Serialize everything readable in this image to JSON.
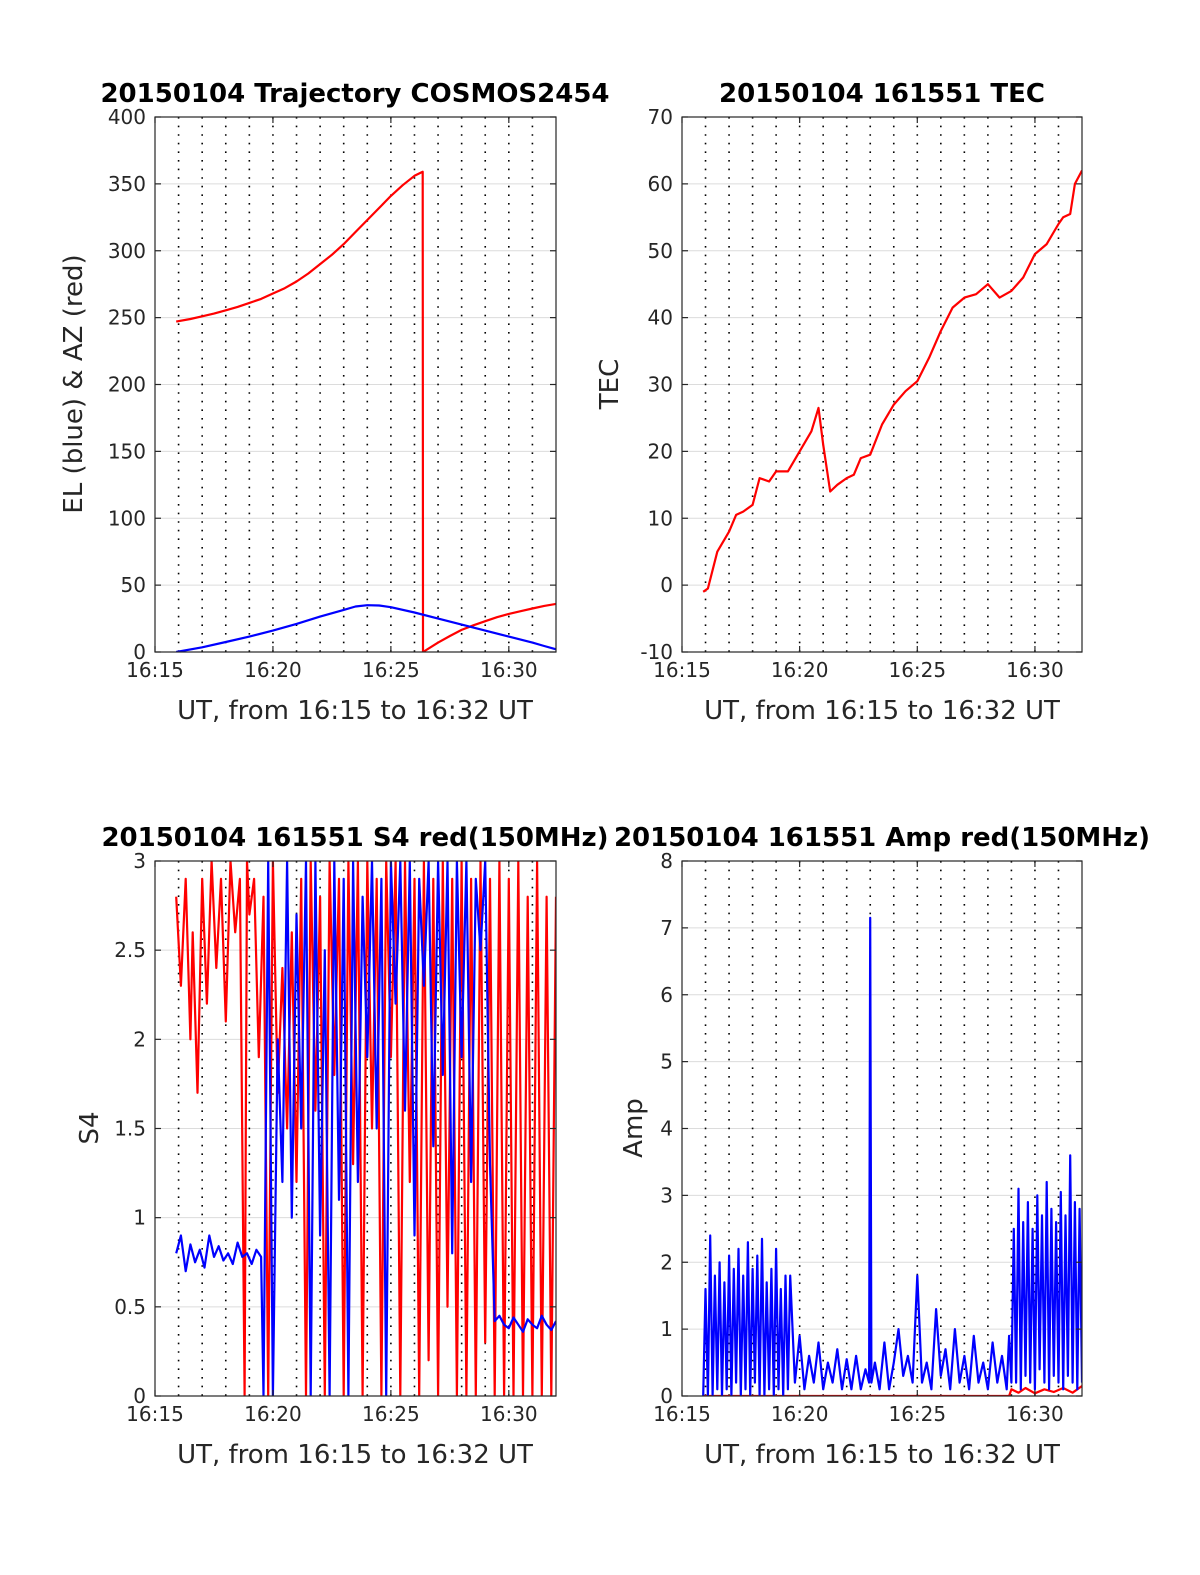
{
  "colors": {
    "red": "#ff0000",
    "blue": "#0000ff"
  },
  "chart_data": [
    {
      "type": "line",
      "title": "20150104 Trajectory COSMOS2454",
      "xlabel": "UT, from 16:15 to 16:32 UT",
      "ylabel": "EL (blue) & AZ (red)",
      "xlim": [
        15,
        32
      ],
      "ylim": [
        0,
        400
      ],
      "xticks": [
        15,
        20,
        25,
        30
      ],
      "xticklabels": [
        "16:15",
        "16:20",
        "16:25",
        "16:30"
      ],
      "yticks": [
        0,
        50,
        100,
        150,
        200,
        250,
        300,
        350,
        400
      ],
      "yticklabels": [
        "0",
        "50",
        "100",
        "150",
        "200",
        "250",
        "300",
        "350",
        "400"
      ],
      "minute_gridlines": true,
      "series": [
        {
          "color": "red",
          "x": [
            15.9,
            16.5,
            17,
            17.5,
            18,
            18.5,
            19,
            19.5,
            20,
            20.5,
            21,
            21.5,
            22,
            22.5,
            23,
            23.5,
            24,
            24.5,
            25,
            25.5,
            26,
            26.35,
            26.36,
            27,
            27.5,
            28,
            28.5,
            29,
            29.5,
            30,
            30.5,
            31,
            31.5,
            32
          ],
          "y": [
            247,
            249,
            251,
            253,
            255.5,
            258,
            261,
            264,
            268,
            272,
            277,
            283,
            290,
            297,
            305,
            314,
            323,
            332,
            341,
            349,
            356,
            359,
            0,
            7,
            12,
            16.5,
            20,
            23,
            26,
            28.5,
            30.5,
            32.5,
            34.5,
            36
          ]
        },
        {
          "color": "blue",
          "x": [
            15.9,
            17,
            18,
            19,
            20,
            21,
            22,
            23,
            23.5,
            24,
            24.5,
            25,
            26,
            27,
            28,
            29,
            30,
            31,
            31.5,
            32
          ],
          "y": [
            0,
            3.5,
            7.5,
            11.5,
            16,
            21,
            26.5,
            31.5,
            34,
            35,
            34.8,
            33.5,
            29.5,
            25,
            20.5,
            16,
            11.5,
            7,
            4.5,
            2
          ]
        }
      ]
    },
    {
      "type": "line",
      "title": "20150104 161551 TEC",
      "xlabel": "UT, from 16:15 to 16:32 UT",
      "ylabel": "TEC",
      "xlim": [
        15,
        32
      ],
      "ylim": [
        -10,
        70
      ],
      "xticks": [
        15,
        20,
        25,
        30
      ],
      "xticklabels": [
        "16:15",
        "16:20",
        "16:25",
        "16:30"
      ],
      "yticks": [
        -10,
        0,
        10,
        20,
        30,
        40,
        50,
        60,
        70
      ],
      "yticklabels": [
        "-10",
        "0",
        "10",
        "20",
        "30",
        "40",
        "50",
        "60",
        "70"
      ],
      "minute_gridlines": true,
      "series": [
        {
          "color": "red",
          "x": [
            15.9,
            16.1,
            16.5,
            17,
            17.3,
            17.6,
            18,
            18.3,
            18.7,
            19,
            19.5,
            20,
            20.5,
            20.8,
            21,
            21.3,
            21.6,
            22,
            22.3,
            22.6,
            23,
            23.5,
            24,
            24.5,
            25,
            25.5,
            26,
            26.5,
            27,
            27.5,
            28,
            28.5,
            29,
            29.5,
            30,
            30.5,
            31,
            31.2,
            31.5,
            31.7,
            32
          ],
          "y": [
            -1,
            -0.5,
            5,
            8,
            10.5,
            11,
            12,
            16,
            15.5,
            17,
            17,
            20,
            23,
            26.5,
            21,
            14,
            15,
            16,
            16.5,
            19,
            19.5,
            24,
            27,
            29,
            30.5,
            34,
            38,
            41.5,
            43,
            43.5,
            45,
            43,
            44,
            46,
            49.5,
            51,
            54,
            55,
            55.5,
            60,
            62
          ]
        }
      ]
    },
    {
      "type": "line",
      "title": "20150104 161551 S4 red(150MHz)",
      "xlabel": "UT, from 16:15 to 16:32 UT",
      "ylabel": "S4",
      "xlim": [
        15,
        32
      ],
      "ylim": [
        0,
        3
      ],
      "xticks": [
        15,
        20,
        25,
        30
      ],
      "xticklabels": [
        "16:15",
        "16:20",
        "16:25",
        "16:30"
      ],
      "yticks": [
        0,
        0.5,
        1,
        1.5,
        2,
        2.5,
        3
      ],
      "yticklabels": [
        "0",
        "0.5",
        "1",
        "1.5",
        "2",
        "2.5",
        "3"
      ],
      "minute_gridlines": true,
      "series": [
        {
          "color": "red",
          "x": [
            15.9,
            16.1,
            16.3,
            16.5,
            16.6,
            16.8,
            17.0,
            17.2,
            17.4,
            17.6,
            17.8,
            18.0,
            18.2,
            18.4,
            18.6,
            18.8,
            18.9,
            19.0,
            19.2,
            19.4,
            19.6,
            19.8,
            20.0,
            20.2,
            20.4,
            20.6,
            20.8,
            21.0,
            21.2,
            21.4,
            21.6,
            21.8,
            22.0,
            22.2,
            22.4,
            22.6,
            22.8,
            23.0,
            23.2,
            23.4,
            23.6,
            23.8,
            24.0,
            24.2,
            24.4,
            24.6,
            24.8,
            25.0,
            25.2,
            25.4,
            25.6,
            25.8,
            26.0,
            26.2,
            26.4,
            26.6,
            26.8,
            27.0,
            27.2,
            27.4,
            27.6,
            27.8,
            28.0,
            28.2,
            28.4,
            28.6,
            28.8,
            29.0,
            29.2,
            29.4,
            29.6,
            29.8,
            30.0,
            30.2,
            30.4,
            30.6,
            30.8,
            31.0,
            31.2,
            31.4,
            31.6,
            31.8,
            32.0
          ],
          "y": [
            2.8,
            2.3,
            2.9,
            2.0,
            2.6,
            1.7,
            2.9,
            2.2,
            3.0,
            2.4,
            2.9,
            2.1,
            3.0,
            2.6,
            2.9,
            0.0,
            3.0,
            2.7,
            2.9,
            1.9,
            2.8,
            0.0,
            3.0,
            1.7,
            2.4,
            1.5,
            2.6,
            1.2,
            2.9,
            0.0,
            3.0,
            1.6,
            2.8,
            0.0,
            3.0,
            1.8,
            2.9,
            0.0,
            3.0,
            1.3,
            3.0,
            0.0,
            3.0,
            1.5,
            2.9,
            0.0,
            3.0,
            1.9,
            3.0,
            0.0,
            3.0,
            1.2,
            2.9,
            0.0,
            3.0,
            0.2,
            2.9,
            0.0,
            3.0,
            0.5,
            2.9,
            0.0,
            3.0,
            0.0,
            2.9,
            0.0,
            3.0,
            0.3,
            2.9,
            0.0,
            3.0,
            0.0,
            2.9,
            0.0,
            3.0,
            0.0,
            2.8,
            0.0,
            3.0,
            0.0,
            2.8,
            0.0,
            2.8
          ]
        },
        {
          "color": "blue",
          "x": [
            15.9,
            16.1,
            16.3,
            16.5,
            16.7,
            16.9,
            17.1,
            17.3,
            17.5,
            17.7,
            17.9,
            18.1,
            18.3,
            18.5,
            18.7,
            18.9,
            19.1,
            19.3,
            19.5,
            19.6,
            19.8,
            20.0,
            20.2,
            20.4,
            20.6,
            20.8,
            21.0,
            21.2,
            21.4,
            21.6,
            21.8,
            22.0,
            22.2,
            22.4,
            22.6,
            22.8,
            23.0,
            23.2,
            23.4,
            23.6,
            23.8,
            24.0,
            24.2,
            24.4,
            24.6,
            24.8,
            25.0,
            25.2,
            25.4,
            25.6,
            25.8,
            26.0,
            26.2,
            26.4,
            26.6,
            26.8,
            27.0,
            27.2,
            27.4,
            27.6,
            27.8,
            28.0,
            28.2,
            28.4,
            28.6,
            28.8,
            29.0,
            29.2,
            29.4,
            29.6,
            29.8,
            30.0,
            30.2,
            30.4,
            30.6,
            30.8,
            31.0,
            31.2,
            31.4,
            31.6,
            31.8,
            32.0
          ],
          "y": [
            0.8,
            0.9,
            0.7,
            0.85,
            0.75,
            0.82,
            0.72,
            0.9,
            0.78,
            0.84,
            0.76,
            0.8,
            0.74,
            0.86,
            0.78,
            0.8,
            0.74,
            0.82,
            0.78,
            0.0,
            3.0,
            0.0,
            2.0,
            1.2,
            3.0,
            1.0,
            2.7,
            1.5,
            3.0,
            0.0,
            3.0,
            0.9,
            2.5,
            0.0,
            3.0,
            1.1,
            2.9,
            0.0,
            3.0,
            1.2,
            2.8,
            1.9,
            3.0,
            1.5,
            2.9,
            0.0,
            3.0,
            2.2,
            3.0,
            1.6,
            3.0,
            0.9,
            2.9,
            2.3,
            3.0,
            1.4,
            3.0,
            1.8,
            3.0,
            0.8,
            3.0,
            1.9,
            3.0,
            1.2,
            2.9,
            2.5,
            3.0,
            1.3,
            0.42,
            0.45,
            0.4,
            0.38,
            0.44,
            0.4,
            0.36,
            0.43,
            0.4,
            0.38,
            0.45,
            0.4,
            0.37,
            0.42
          ]
        }
      ]
    },
    {
      "type": "line",
      "title": "20150104 161551 Amp red(150MHz)",
      "xlabel": "UT, from 16:15 to 16:32 UT",
      "ylabel": "Amp",
      "xlim": [
        15,
        32
      ],
      "ylim": [
        0,
        8
      ],
      "xticks": [
        15,
        20,
        25,
        30
      ],
      "xticklabels": [
        "16:15",
        "16:20",
        "16:25",
        "16:30"
      ],
      "yticks": [
        0,
        1,
        2,
        3,
        4,
        5,
        6,
        7,
        8
      ],
      "yticklabels": [
        "0",
        "1",
        "2",
        "3",
        "4",
        "5",
        "6",
        "7",
        "8"
      ],
      "minute_gridlines": true,
      "series": [
        {
          "color": "red",
          "x": [
            15.9,
            20,
            25,
            28.9,
            29.0,
            29.3,
            29.6,
            30,
            30.4,
            30.8,
            31.2,
            31.6,
            32
          ],
          "y": [
            0,
            0,
            0,
            0,
            0.1,
            0.05,
            0.12,
            0.04,
            0.1,
            0.06,
            0.12,
            0.05,
            0.15
          ]
        },
        {
          "color": "blue",
          "x": [
            15.9,
            16.0,
            16.1,
            16.2,
            16.3,
            16.4,
            16.5,
            16.6,
            16.7,
            16.8,
            16.9,
            17.0,
            17.1,
            17.2,
            17.3,
            17.4,
            17.5,
            17.6,
            17.7,
            17.8,
            17.9,
            18.0,
            18.1,
            18.2,
            18.3,
            18.4,
            18.5,
            18.6,
            18.7,
            18.8,
            18.9,
            19.0,
            19.1,
            19.2,
            19.3,
            19.4,
            19.5,
            19.6,
            19.8,
            20.0,
            20.2,
            20.4,
            20.6,
            20.8,
            21.0,
            21.2,
            21.4,
            21.6,
            21.8,
            22.0,
            22.2,
            22.4,
            22.6,
            22.8,
            22.95,
            23.0,
            23.05,
            23.2,
            23.4,
            23.6,
            23.8,
            24.0,
            24.2,
            24.4,
            24.6,
            24.8,
            25.0,
            25.2,
            25.4,
            25.6,
            25.8,
            26.0,
            26.2,
            26.4,
            26.6,
            26.8,
            27.0,
            27.2,
            27.4,
            27.6,
            27.8,
            28.0,
            28.2,
            28.4,
            28.6,
            28.8,
            28.9,
            29.0,
            29.1,
            29.2,
            29.3,
            29.4,
            29.5,
            29.6,
            29.7,
            29.8,
            29.9,
            30.0,
            30.1,
            30.2,
            30.3,
            30.4,
            30.5,
            30.6,
            30.7,
            30.8,
            30.9,
            31.0,
            31.1,
            31.2,
            31.3,
            31.4,
            31.5,
            31.6,
            31.7,
            31.8,
            31.9,
            32.0
          ],
          "y": [
            0,
            1.6,
            0,
            2.4,
            0,
            1.8,
            0.1,
            2.0,
            0,
            1.7,
            0.1,
            2.1,
            0,
            1.9,
            0.2,
            2.2,
            0,
            1.8,
            0.1,
            2.3,
            0,
            1.9,
            0.2,
            2.1,
            0,
            2.35,
            0,
            1.7,
            0.1,
            1.9,
            0,
            2.2,
            0.1,
            1.6,
            0,
            1.8,
            0.1,
            1.8,
            0.2,
            0.9,
            0.1,
            0.6,
            0.2,
            0.8,
            0.1,
            0.5,
            0.2,
            0.7,
            0.1,
            0.55,
            0.1,
            0.6,
            0.1,
            0.4,
            0.2,
            7.15,
            0.2,
            0.5,
            0.1,
            0.8,
            0.1,
            0.5,
            1.0,
            0.3,
            0.6,
            0.2,
            1.8,
            0.2,
            0.5,
            0.1,
            1.3,
            0.3,
            0.7,
            0.1,
            1.0,
            0.2,
            0.6,
            0.1,
            0.9,
            0.2,
            0.5,
            0.1,
            0.8,
            0.2,
            0.6,
            0.1,
            0.9,
            0.2,
            2.5,
            0.2,
            3.1,
            0.1,
            2.6,
            0.3,
            2.9,
            0.2,
            2.5,
            0.1,
            3.0,
            0.4,
            2.7,
            0.2,
            3.2,
            0.1,
            2.8,
            0.3,
            2.6,
            0.2,
            3.05,
            0.1,
            2.7,
            0.3,
            3.6,
            0.2,
            2.9,
            0.1,
            2.8,
            0.2
          ]
        }
      ]
    }
  ]
}
